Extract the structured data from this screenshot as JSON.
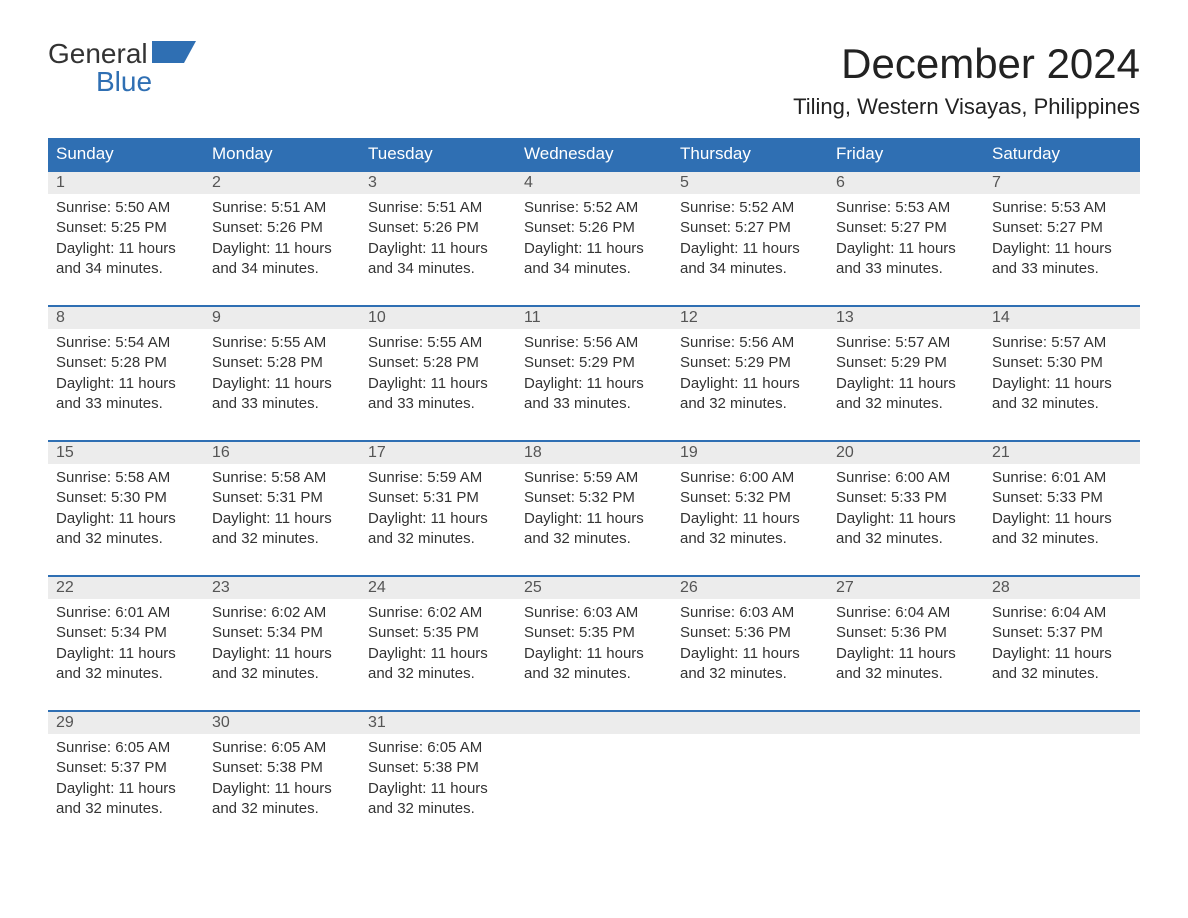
{
  "logo": {
    "word1": "General",
    "word2": "Blue",
    "accent_color": "#2f6fb3"
  },
  "title": "December 2024",
  "location": "Tiling, Western Visayas, Philippines",
  "colors": {
    "header_bg": "#2f6fb3",
    "header_text": "#ffffff",
    "daynum_bg": "#ececec",
    "row_divider": "#2f6fb3",
    "text": "#333333",
    "page_bg": "#ffffff"
  },
  "weekdays": [
    "Sunday",
    "Monday",
    "Tuesday",
    "Wednesday",
    "Thursday",
    "Friday",
    "Saturday"
  ],
  "days": [
    {
      "n": 1,
      "sunrise": "5:50 AM",
      "sunset": "5:25 PM",
      "daylight": "11 hours and 34 minutes."
    },
    {
      "n": 2,
      "sunrise": "5:51 AM",
      "sunset": "5:26 PM",
      "daylight": "11 hours and 34 minutes."
    },
    {
      "n": 3,
      "sunrise": "5:51 AM",
      "sunset": "5:26 PM",
      "daylight": "11 hours and 34 minutes."
    },
    {
      "n": 4,
      "sunrise": "5:52 AM",
      "sunset": "5:26 PM",
      "daylight": "11 hours and 34 minutes."
    },
    {
      "n": 5,
      "sunrise": "5:52 AM",
      "sunset": "5:27 PM",
      "daylight": "11 hours and 34 minutes."
    },
    {
      "n": 6,
      "sunrise": "5:53 AM",
      "sunset": "5:27 PM",
      "daylight": "11 hours and 33 minutes."
    },
    {
      "n": 7,
      "sunrise": "5:53 AM",
      "sunset": "5:27 PM",
      "daylight": "11 hours and 33 minutes."
    },
    {
      "n": 8,
      "sunrise": "5:54 AM",
      "sunset": "5:28 PM",
      "daylight": "11 hours and 33 minutes."
    },
    {
      "n": 9,
      "sunrise": "5:55 AM",
      "sunset": "5:28 PM",
      "daylight": "11 hours and 33 minutes."
    },
    {
      "n": 10,
      "sunrise": "5:55 AM",
      "sunset": "5:28 PM",
      "daylight": "11 hours and 33 minutes."
    },
    {
      "n": 11,
      "sunrise": "5:56 AM",
      "sunset": "5:29 PM",
      "daylight": "11 hours and 33 minutes."
    },
    {
      "n": 12,
      "sunrise": "5:56 AM",
      "sunset": "5:29 PM",
      "daylight": "11 hours and 32 minutes."
    },
    {
      "n": 13,
      "sunrise": "5:57 AM",
      "sunset": "5:29 PM",
      "daylight": "11 hours and 32 minutes."
    },
    {
      "n": 14,
      "sunrise": "5:57 AM",
      "sunset": "5:30 PM",
      "daylight": "11 hours and 32 minutes."
    },
    {
      "n": 15,
      "sunrise": "5:58 AM",
      "sunset": "5:30 PM",
      "daylight": "11 hours and 32 minutes."
    },
    {
      "n": 16,
      "sunrise": "5:58 AM",
      "sunset": "5:31 PM",
      "daylight": "11 hours and 32 minutes."
    },
    {
      "n": 17,
      "sunrise": "5:59 AM",
      "sunset": "5:31 PM",
      "daylight": "11 hours and 32 minutes."
    },
    {
      "n": 18,
      "sunrise": "5:59 AM",
      "sunset": "5:32 PM",
      "daylight": "11 hours and 32 minutes."
    },
    {
      "n": 19,
      "sunrise": "6:00 AM",
      "sunset": "5:32 PM",
      "daylight": "11 hours and 32 minutes."
    },
    {
      "n": 20,
      "sunrise": "6:00 AM",
      "sunset": "5:33 PM",
      "daylight": "11 hours and 32 minutes."
    },
    {
      "n": 21,
      "sunrise": "6:01 AM",
      "sunset": "5:33 PM",
      "daylight": "11 hours and 32 minutes."
    },
    {
      "n": 22,
      "sunrise": "6:01 AM",
      "sunset": "5:34 PM",
      "daylight": "11 hours and 32 minutes."
    },
    {
      "n": 23,
      "sunrise": "6:02 AM",
      "sunset": "5:34 PM",
      "daylight": "11 hours and 32 minutes."
    },
    {
      "n": 24,
      "sunrise": "6:02 AM",
      "sunset": "5:35 PM",
      "daylight": "11 hours and 32 minutes."
    },
    {
      "n": 25,
      "sunrise": "6:03 AM",
      "sunset": "5:35 PM",
      "daylight": "11 hours and 32 minutes."
    },
    {
      "n": 26,
      "sunrise": "6:03 AM",
      "sunset": "5:36 PM",
      "daylight": "11 hours and 32 minutes."
    },
    {
      "n": 27,
      "sunrise": "6:04 AM",
      "sunset": "5:36 PM",
      "daylight": "11 hours and 32 minutes."
    },
    {
      "n": 28,
      "sunrise": "6:04 AM",
      "sunset": "5:37 PM",
      "daylight": "11 hours and 32 minutes."
    },
    {
      "n": 29,
      "sunrise": "6:05 AM",
      "sunset": "5:37 PM",
      "daylight": "11 hours and 32 minutes."
    },
    {
      "n": 30,
      "sunrise": "6:05 AM",
      "sunset": "5:38 PM",
      "daylight": "11 hours and 32 minutes."
    },
    {
      "n": 31,
      "sunrise": "6:05 AM",
      "sunset": "5:38 PM",
      "daylight": "11 hours and 32 minutes."
    }
  ],
  "labels": {
    "sunrise": "Sunrise:",
    "sunset": "Sunset:",
    "daylight": "Daylight:"
  },
  "layout": {
    "start_weekday_index": 0,
    "columns": 7
  }
}
